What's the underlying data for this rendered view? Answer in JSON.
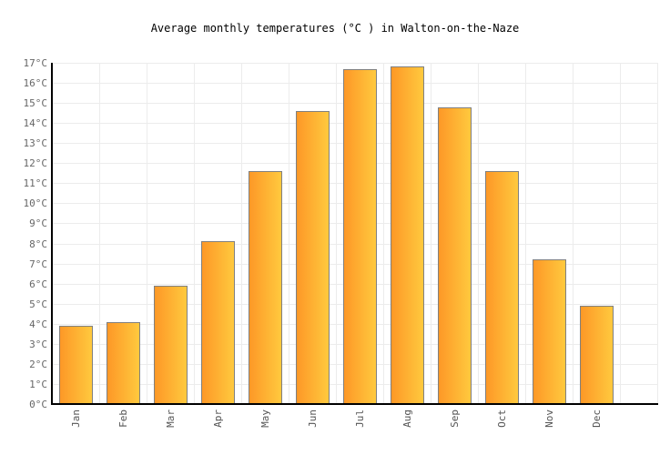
{
  "title": "Average monthly temperatures (°C ) in Walton-on-the-Naze",
  "chart_data": {
    "type": "bar",
    "title": "Average monthly temperatures (°C ) in Walton-on-the-Naze",
    "categories": [
      "Jan",
      "Feb",
      "Mar",
      "Apr",
      "May",
      "Jun",
      "Jul",
      "Aug",
      "Sep",
      "Oct",
      "Nov",
      "Dec"
    ],
    "values": [
      3.9,
      4.1,
      5.9,
      8.1,
      11.6,
      14.6,
      16.7,
      16.8,
      14.8,
      11.6,
      7.2,
      4.9
    ],
    "unit": "°C",
    "xlabel": "",
    "ylabel": "",
    "ylim": [
      0,
      17
    ],
    "ytick_step": 1,
    "ytick_suffix": "°C",
    "grid": true,
    "legend": "none",
    "colors": {
      "bar_gradient_left": "#FD9827",
      "bar_gradient_right": "#FFC93E",
      "bar_border": "#808080",
      "grid_line": "#ECECEC",
      "axis_line": "#000000",
      "tick_label": "#666666",
      "title": "#000000",
      "background": "#FFFFFF"
    }
  }
}
